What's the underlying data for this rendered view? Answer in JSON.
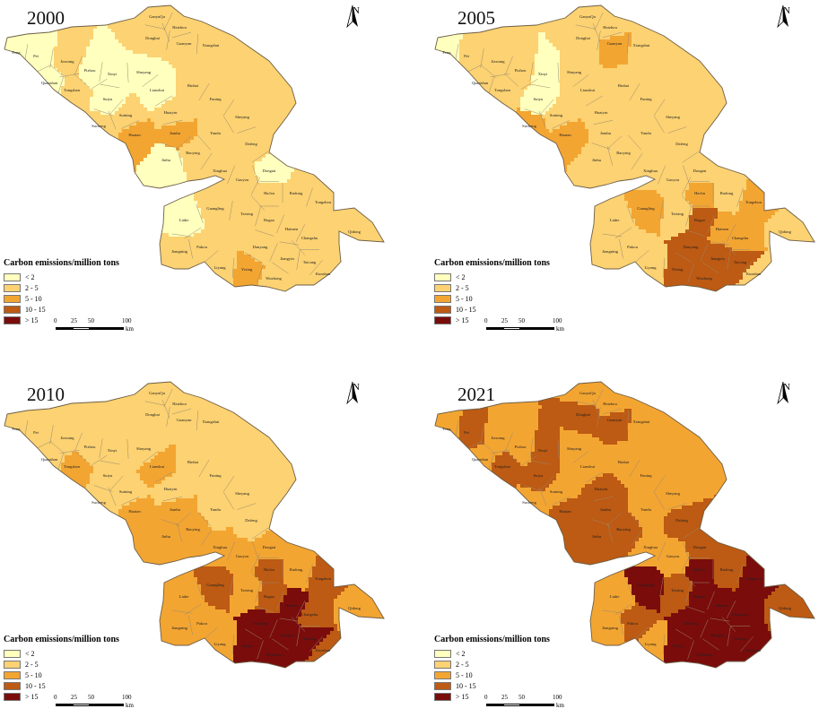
{
  "panels": [
    {
      "year": "2000",
      "classes": [
        1,
        1,
        1,
        1,
        1,
        0,
        0,
        1,
        0,
        0,
        0,
        1,
        0,
        0,
        0,
        1,
        1,
        1,
        1,
        1,
        1,
        2,
        2,
        1,
        1,
        0,
        0,
        1,
        1,
        1,
        1,
        1,
        1,
        1,
        0,
        1,
        1,
        1,
        1,
        1,
        1,
        1,
        1,
        1,
        1,
        1,
        2,
        1,
        1
      ]
    },
    {
      "year": "2005",
      "classes": [
        1,
        1,
        1,
        2,
        1,
        0,
        1,
        1,
        1,
        0,
        1,
        1,
        0,
        1,
        1,
        1,
        1,
        1,
        1,
        1,
        2,
        2,
        1,
        1,
        1,
        1,
        1,
        1,
        1,
        1,
        2,
        1,
        2,
        1,
        1,
        2,
        1,
        3,
        2,
        2,
        3,
        3,
        3,
        1,
        1,
        1,
        3,
        3,
        1
      ]
    },
    {
      "year": "2010",
      "classes": [
        1,
        1,
        1,
        1,
        1,
        1,
        1,
        1,
        1,
        1,
        1,
        2,
        1,
        1,
        2,
        1,
        1,
        1,
        1,
        1,
        1,
        2,
        2,
        1,
        1,
        2,
        2,
        2,
        2,
        2,
        3,
        2,
        3,
        2,
        2,
        3,
        2,
        3,
        4,
        3,
        4,
        4,
        4,
        2,
        2,
        2,
        4,
        4,
        3
      ]
    },
    {
      "year": "2021",
      "classes": [
        2,
        2,
        3,
        3,
        2,
        2,
        3,
        2,
        2,
        3,
        2,
        3,
        3,
        2,
        2,
        2,
        2,
        3,
        2,
        2,
        2,
        3,
        3,
        2,
        3,
        3,
        3,
        3,
        2,
        2,
        4,
        3,
        4,
        3,
        2,
        4,
        3,
        4,
        4,
        4,
        4,
        4,
        4,
        3,
        2,
        2,
        4,
        4,
        4
      ]
    }
  ],
  "legend": {
    "title": "Carbon emissions/million tons",
    "items": [
      {
        "label": "< 2",
        "color": "#ffffbe"
      },
      {
        "label": "2 - 5",
        "color": "#fcd272"
      },
      {
        "label": "5 - 10",
        "color": "#f3a532"
      },
      {
        "label": "10 - 15",
        "color": "#bd5a13"
      },
      {
        "label": "> 15",
        "color": "#7a0c0c"
      }
    ]
  },
  "scale": {
    "ticks": [
      "0",
      "25",
      "50",
      "100"
    ],
    "unit": "km"
  },
  "north": "N",
  "place_names": [
    "GanyuQu",
    "Haizhou",
    "Donghai",
    "Guanyun",
    "Xiangshui",
    "Feng",
    "Pei",
    "Jiawang",
    "Pizhou",
    "Xinyi",
    "Quanshan",
    "Gulou",
    "Yunlong",
    "Tongshan",
    "Shuyang",
    "Binhai",
    "Suiyu",
    "Lianshui",
    "Sheyang",
    "Suining",
    "Sucheng",
    "Siyang",
    "Huaiyin",
    "Funing",
    "Qinghe",
    "Qingpu",
    "Huaian",
    "Jianhu",
    "Tinghu",
    "Sihong",
    "Yandu",
    "Dafeng",
    "Hongze",
    "Baoying",
    "Xuyi",
    "Jinhu",
    "Xinghua",
    "Dongtai",
    "Gaoyou",
    "Hai'an",
    "Rudong",
    "Jiangdu",
    "Jiangyan",
    "Gaogang",
    "Taixing",
    "Rugao",
    "Tongzhou",
    "Haimen",
    "Qidong",
    "Liuhe",
    "Yizheng",
    "Guangling",
    "Hanjiang",
    "Jingkou",
    "Dantu",
    "Runzhou",
    "Yangzhong",
    "Jingjiang",
    "Chongchuan",
    "Changshu",
    "Taicang",
    "Zhangjiagang",
    "Gulou Qixia",
    "Xuanwu",
    "Pukou",
    "Yuhuatai",
    "Jiangning",
    "Gaochun",
    "Lishui",
    "Liyang",
    "Jintan",
    "Danyang",
    "Wujin",
    "Yixing",
    "Wuzhong",
    "Wujiang",
    "Kunshan",
    "Xinbei",
    "Jiangyin",
    "Xishan",
    "Huishan",
    "Zhonglou"
  ]
}
